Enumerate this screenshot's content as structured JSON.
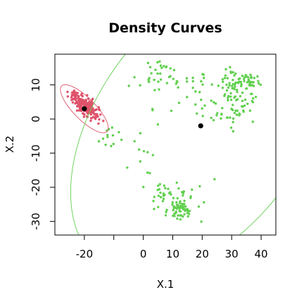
{
  "chart_data": {
    "type": "scatter",
    "title": "Density Curves",
    "xlabel": "X.1",
    "ylabel": "X.2",
    "xlim": [
      -30,
      45
    ],
    "ylim": [
      -34,
      19
    ],
    "xticks": [
      {
        "value": -20,
        "label": "-20"
      },
      {
        "value": -10,
        "label": ""
      },
      {
        "value": 0,
        "label": "0"
      },
      {
        "value": 10,
        "label": "10"
      },
      {
        "value": 20,
        "label": "20"
      },
      {
        "value": 30,
        "label": "30"
      },
      {
        "value": 40,
        "label": "40"
      }
    ],
    "yticks": [
      {
        "value": -30,
        "label": "-30"
      },
      {
        "value": -20,
        "label": "-20"
      },
      {
        "value": -10,
        "label": "-10"
      },
      {
        "value": 0,
        "label": "0"
      },
      {
        "value": 10,
        "label": "10"
      }
    ],
    "grid": false,
    "legend": "none",
    "colors": {
      "red_series": "#df536b",
      "green_series": "#61d04f",
      "centers": "#000000"
    },
    "series": [
      {
        "color": "#df536b",
        "groups": [
          {
            "center": [
              -20,
              4
            ],
            "spread": [
              2.2,
              1.8
            ],
            "corr": -0.75,
            "n": 230
          }
        ]
      },
      {
        "color": "#61d04f",
        "groups": [
          {
            "center": [
              -11,
              -5
            ],
            "spread": [
              2,
              2
            ],
            "corr": 0,
            "n": 12
          },
          {
            "center": [
              5,
              13
            ],
            "spread": [
              4.5,
              2
            ],
            "corr": 0,
            "n": 35
          },
          {
            "center": [
              19,
              10
            ],
            "spread": [
              4,
              2
            ],
            "corr": 0,
            "n": 15
          },
          {
            "center": [
              33,
              11
            ],
            "spread": [
              3.2,
              2
            ],
            "corr": 0,
            "n": 70
          },
          {
            "center": [
              31,
              4
            ],
            "spread": [
              3.5,
              4
            ],
            "corr": 0,
            "n": 55
          },
          {
            "center": [
              21,
              2
            ],
            "spread": [
              3,
              3
            ],
            "corr": 0,
            "n": 10
          },
          {
            "center": [
              0,
              -12
            ],
            "spread": [
              3,
              3
            ],
            "corr": 0,
            "n": 10
          },
          {
            "center": [
              6,
              -21
            ],
            "spread": [
              2.5,
              2
            ],
            "corr": 0,
            "n": 25
          },
          {
            "center": [
              12,
              -26
            ],
            "spread": [
              2,
              2
            ],
            "corr": 0,
            "n": 65
          },
          {
            "center": [
              18,
              -22
            ],
            "spread": [
              2.5,
              3
            ],
            "corr": 0,
            "n": 8
          },
          {
            "center": [
              9,
              3
            ],
            "spread": [
              5,
              3
            ],
            "corr": 0,
            "n": 8
          }
        ]
      }
    ],
    "centers": [
      [
        -20,
        3
      ],
      [
        19.5,
        -2
      ]
    ],
    "ellipses": [
      {
        "color": "#df536b",
        "center": [
          -20,
          3
        ],
        "semi_major": 10.2,
        "semi_minor": 3.4,
        "angle_deg": -40
      },
      {
        "color": "#61d04f",
        "center": [
          19.5,
          -2
        ],
        "semi_major": 53,
        "semi_minor": 33,
        "angle_deg": 45
      }
    ]
  }
}
